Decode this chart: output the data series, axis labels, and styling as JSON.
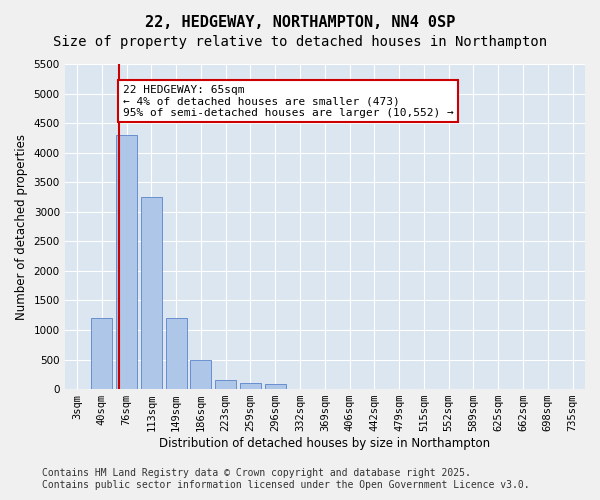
{
  "title_line1": "22, HEDGEWAY, NORTHAMPTON, NN4 0SP",
  "title_line2": "Size of property relative to detached houses in Northampton",
  "xlabel": "Distribution of detached houses by size in Northampton",
  "ylabel": "Number of detached properties",
  "categories": [
    "3sqm",
    "40sqm",
    "76sqm",
    "113sqm",
    "149sqm",
    "186sqm",
    "223sqm",
    "259sqm",
    "296sqm",
    "332sqm",
    "369sqm",
    "406sqm",
    "442sqm",
    "479sqm",
    "515sqm",
    "552sqm",
    "589sqm",
    "625sqm",
    "662sqm",
    "698sqm",
    "735sqm"
  ],
  "bar_values": [
    0,
    1200,
    4300,
    3250,
    1200,
    500,
    150,
    100,
    80,
    0,
    0,
    0,
    0,
    0,
    0,
    0,
    0,
    0,
    0,
    0,
    0
  ],
  "bar_color": "#aec6e8",
  "bar_edge_color": "#4472c4",
  "bg_color": "#dce6f1",
  "grid_color": "#ffffff",
  "property_line_x": 1.65,
  "property_size": "65sqm",
  "annotation_text_line1": "22 HEDGEWAY: 65sqm",
  "annotation_text_line2": "← 4% of detached houses are smaller (473)",
  "annotation_text_line3": "95% of semi-detached houses are larger (10,552) →",
  "annotation_box_color": "#ffffff",
  "annotation_box_edge": "#cc0000",
  "vline_color": "#cc0000",
  "ylim": [
    0,
    5500
  ],
  "yticks": [
    0,
    500,
    1000,
    1500,
    2000,
    2500,
    3000,
    3500,
    4000,
    4500,
    5000,
    5500
  ],
  "footer_line1": "Contains HM Land Registry data © Crown copyright and database right 2025.",
  "footer_line2": "Contains public sector information licensed under the Open Government Licence v3.0.",
  "title_fontsize": 11,
  "subtitle_fontsize": 10,
  "axis_label_fontsize": 8.5,
  "tick_fontsize": 7.5,
  "annotation_fontsize": 8,
  "footer_fontsize": 7
}
